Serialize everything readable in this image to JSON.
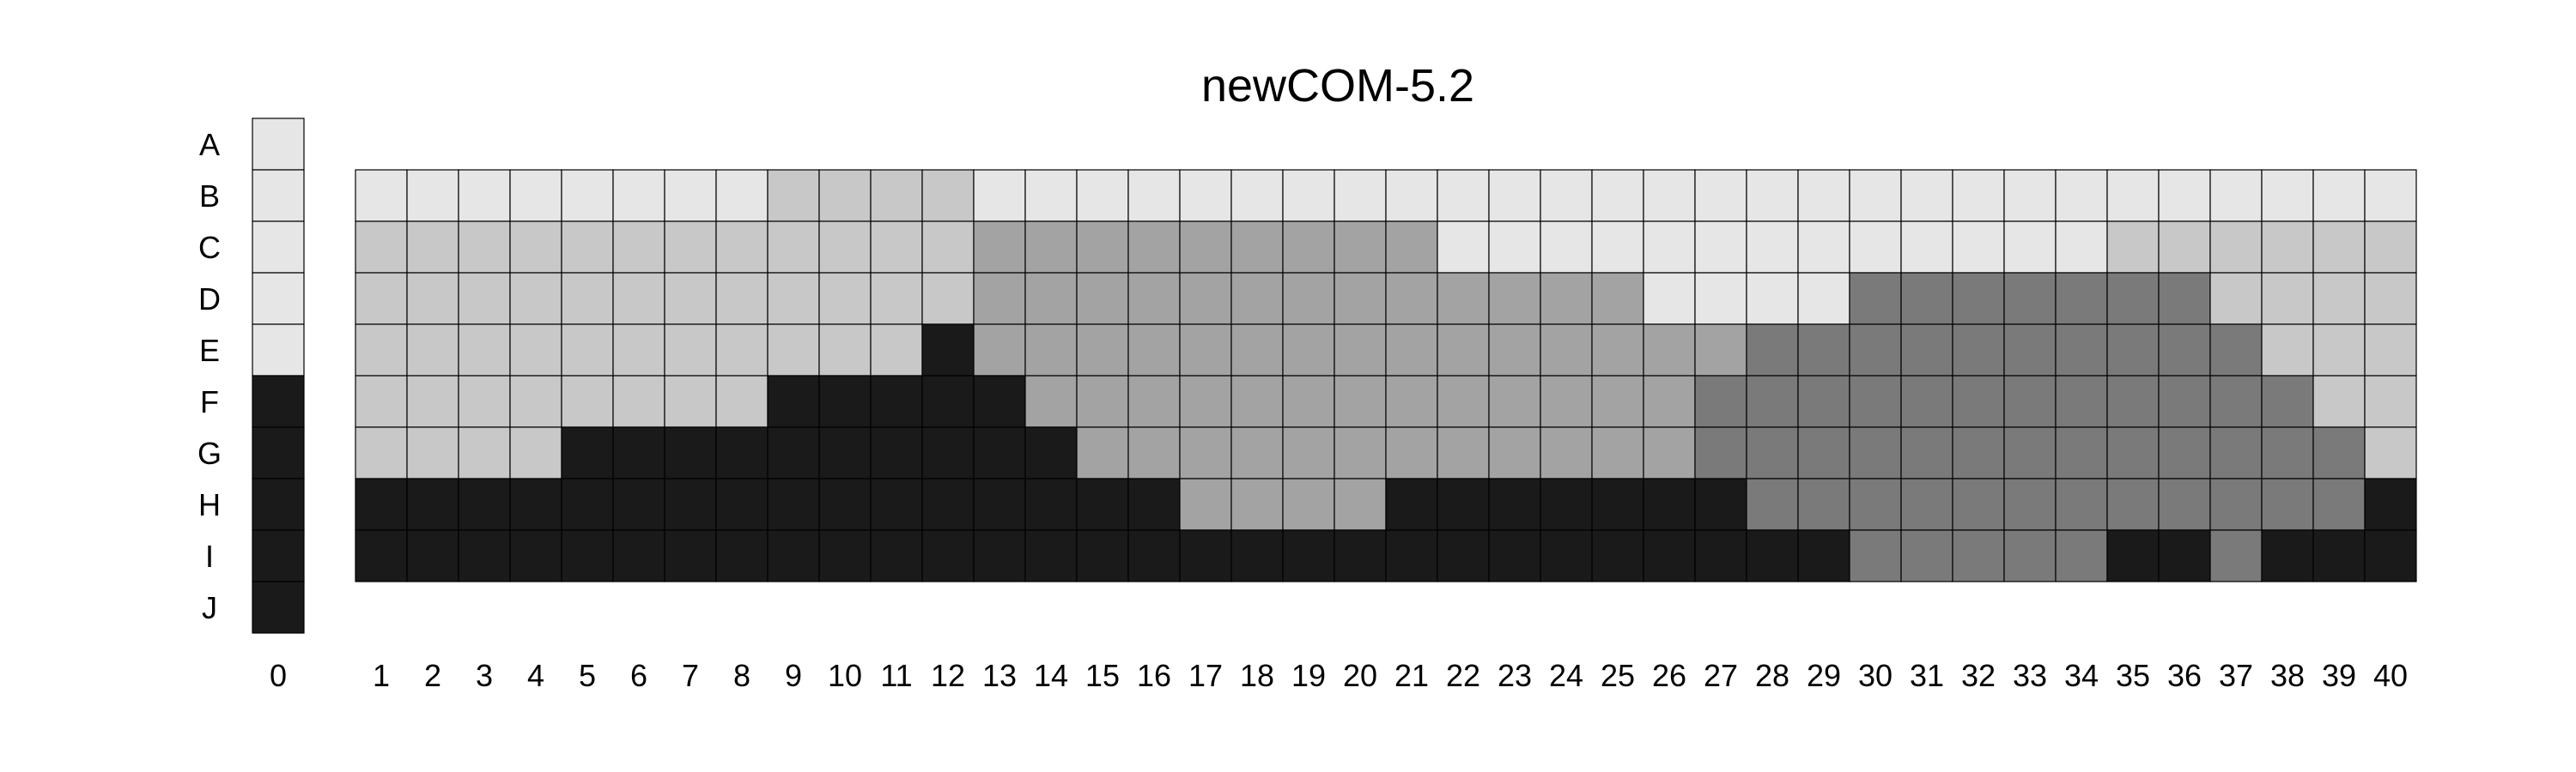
{
  "chart_data": {
    "type": "heatmap",
    "title": "newCOM-5.2",
    "rows": [
      "A",
      "B",
      "C",
      "D",
      "E",
      "F",
      "G",
      "H",
      "I",
      "J"
    ],
    "columns": [
      "0",
      "1",
      "2",
      "3",
      "4",
      "5",
      "6",
      "7",
      "8",
      "9",
      "10",
      "11",
      "12",
      "13",
      "14",
      "15",
      "16",
      "17",
      "18",
      "19",
      "20",
      "21",
      "22",
      "23",
      "24",
      "25",
      "26",
      "27",
      "28",
      "29",
      "30",
      "31",
      "32",
      "33",
      "34",
      "35",
      "36",
      "37",
      "38",
      "39",
      "40"
    ],
    "level_colors": [
      "#e6e6e6",
      "#c8c8c8",
      "#a3a3a3",
      "#7a7a7a",
      "#1a1a1a"
    ],
    "index_column": [
      0,
      0,
      0,
      0,
      0,
      4,
      4,
      4,
      4,
      4
    ],
    "grid_rows": [
      "B",
      "C",
      "D",
      "E",
      "F",
      "G",
      "H",
      "I"
    ],
    "grid_levels": [
      [
        0,
        0,
        0,
        0,
        0,
        0,
        0,
        0,
        1,
        1,
        1,
        1,
        0,
        0,
        0,
        0,
        0,
        0,
        0,
        0,
        0,
        0,
        0,
        0,
        0,
        0,
        0,
        0,
        0,
        0,
        0,
        0,
        0,
        0,
        0,
        0,
        0,
        0,
        0,
        0
      ],
      [
        1,
        1,
        1,
        1,
        1,
        1,
        1,
        1,
        1,
        1,
        1,
        1,
        2,
        2,
        2,
        2,
        2,
        2,
        2,
        2,
        2,
        0,
        0,
        0,
        0,
        0,
        0,
        0,
        0,
        0,
        0,
        0,
        0,
        0,
        1,
        1,
        1,
        1,
        1,
        1
      ],
      [
        1,
        1,
        1,
        1,
        1,
        1,
        1,
        1,
        1,
        1,
        1,
        1,
        2,
        2,
        2,
        2,
        2,
        2,
        2,
        2,
        2,
        2,
        2,
        2,
        2,
        0,
        0,
        0,
        0,
        3,
        3,
        3,
        3,
        3,
        3,
        3,
        1,
        1,
        1,
        1
      ],
      [
        1,
        1,
        1,
        1,
        1,
        1,
        1,
        1,
        1,
        1,
        1,
        4,
        2,
        2,
        2,
        2,
        2,
        2,
        2,
        2,
        2,
        2,
        2,
        2,
        2,
        2,
        2,
        3,
        3,
        3,
        3,
        3,
        3,
        3,
        3,
        3,
        3,
        1,
        1,
        1
      ],
      [
        1,
        1,
        1,
        1,
        1,
        1,
        1,
        1,
        4,
        4,
        4,
        4,
        4,
        2,
        2,
        2,
        2,
        2,
        2,
        2,
        2,
        2,
        2,
        2,
        2,
        2,
        3,
        3,
        3,
        3,
        3,
        3,
        3,
        3,
        3,
        3,
        3,
        3,
        1,
        1
      ],
      [
        1,
        1,
        1,
        1,
        4,
        4,
        4,
        4,
        4,
        4,
        4,
        4,
        4,
        4,
        2,
        2,
        2,
        2,
        2,
        2,
        2,
        2,
        2,
        2,
        2,
        2,
        3,
        3,
        3,
        3,
        3,
        3,
        3,
        3,
        3,
        3,
        3,
        3,
        3,
        1
      ],
      [
        4,
        4,
        4,
        4,
        4,
        4,
        4,
        4,
        4,
        4,
        4,
        4,
        4,
        4,
        4,
        4,
        2,
        2,
        2,
        2,
        4,
        4,
        4,
        4,
        4,
        4,
        4,
        3,
        3,
        3,
        3,
        3,
        3,
        3,
        3,
        3,
        3,
        3,
        3,
        4
      ],
      [
        4,
        4,
        4,
        4,
        4,
        4,
        4,
        4,
        4,
        4,
        4,
        4,
        4,
        4,
        4,
        4,
        4,
        4,
        4,
        4,
        4,
        4,
        4,
        4,
        4,
        4,
        4,
        4,
        4,
        3,
        3,
        3,
        3,
        3,
        4,
        4,
        3,
        4,
        4,
        4
      ]
    ]
  }
}
